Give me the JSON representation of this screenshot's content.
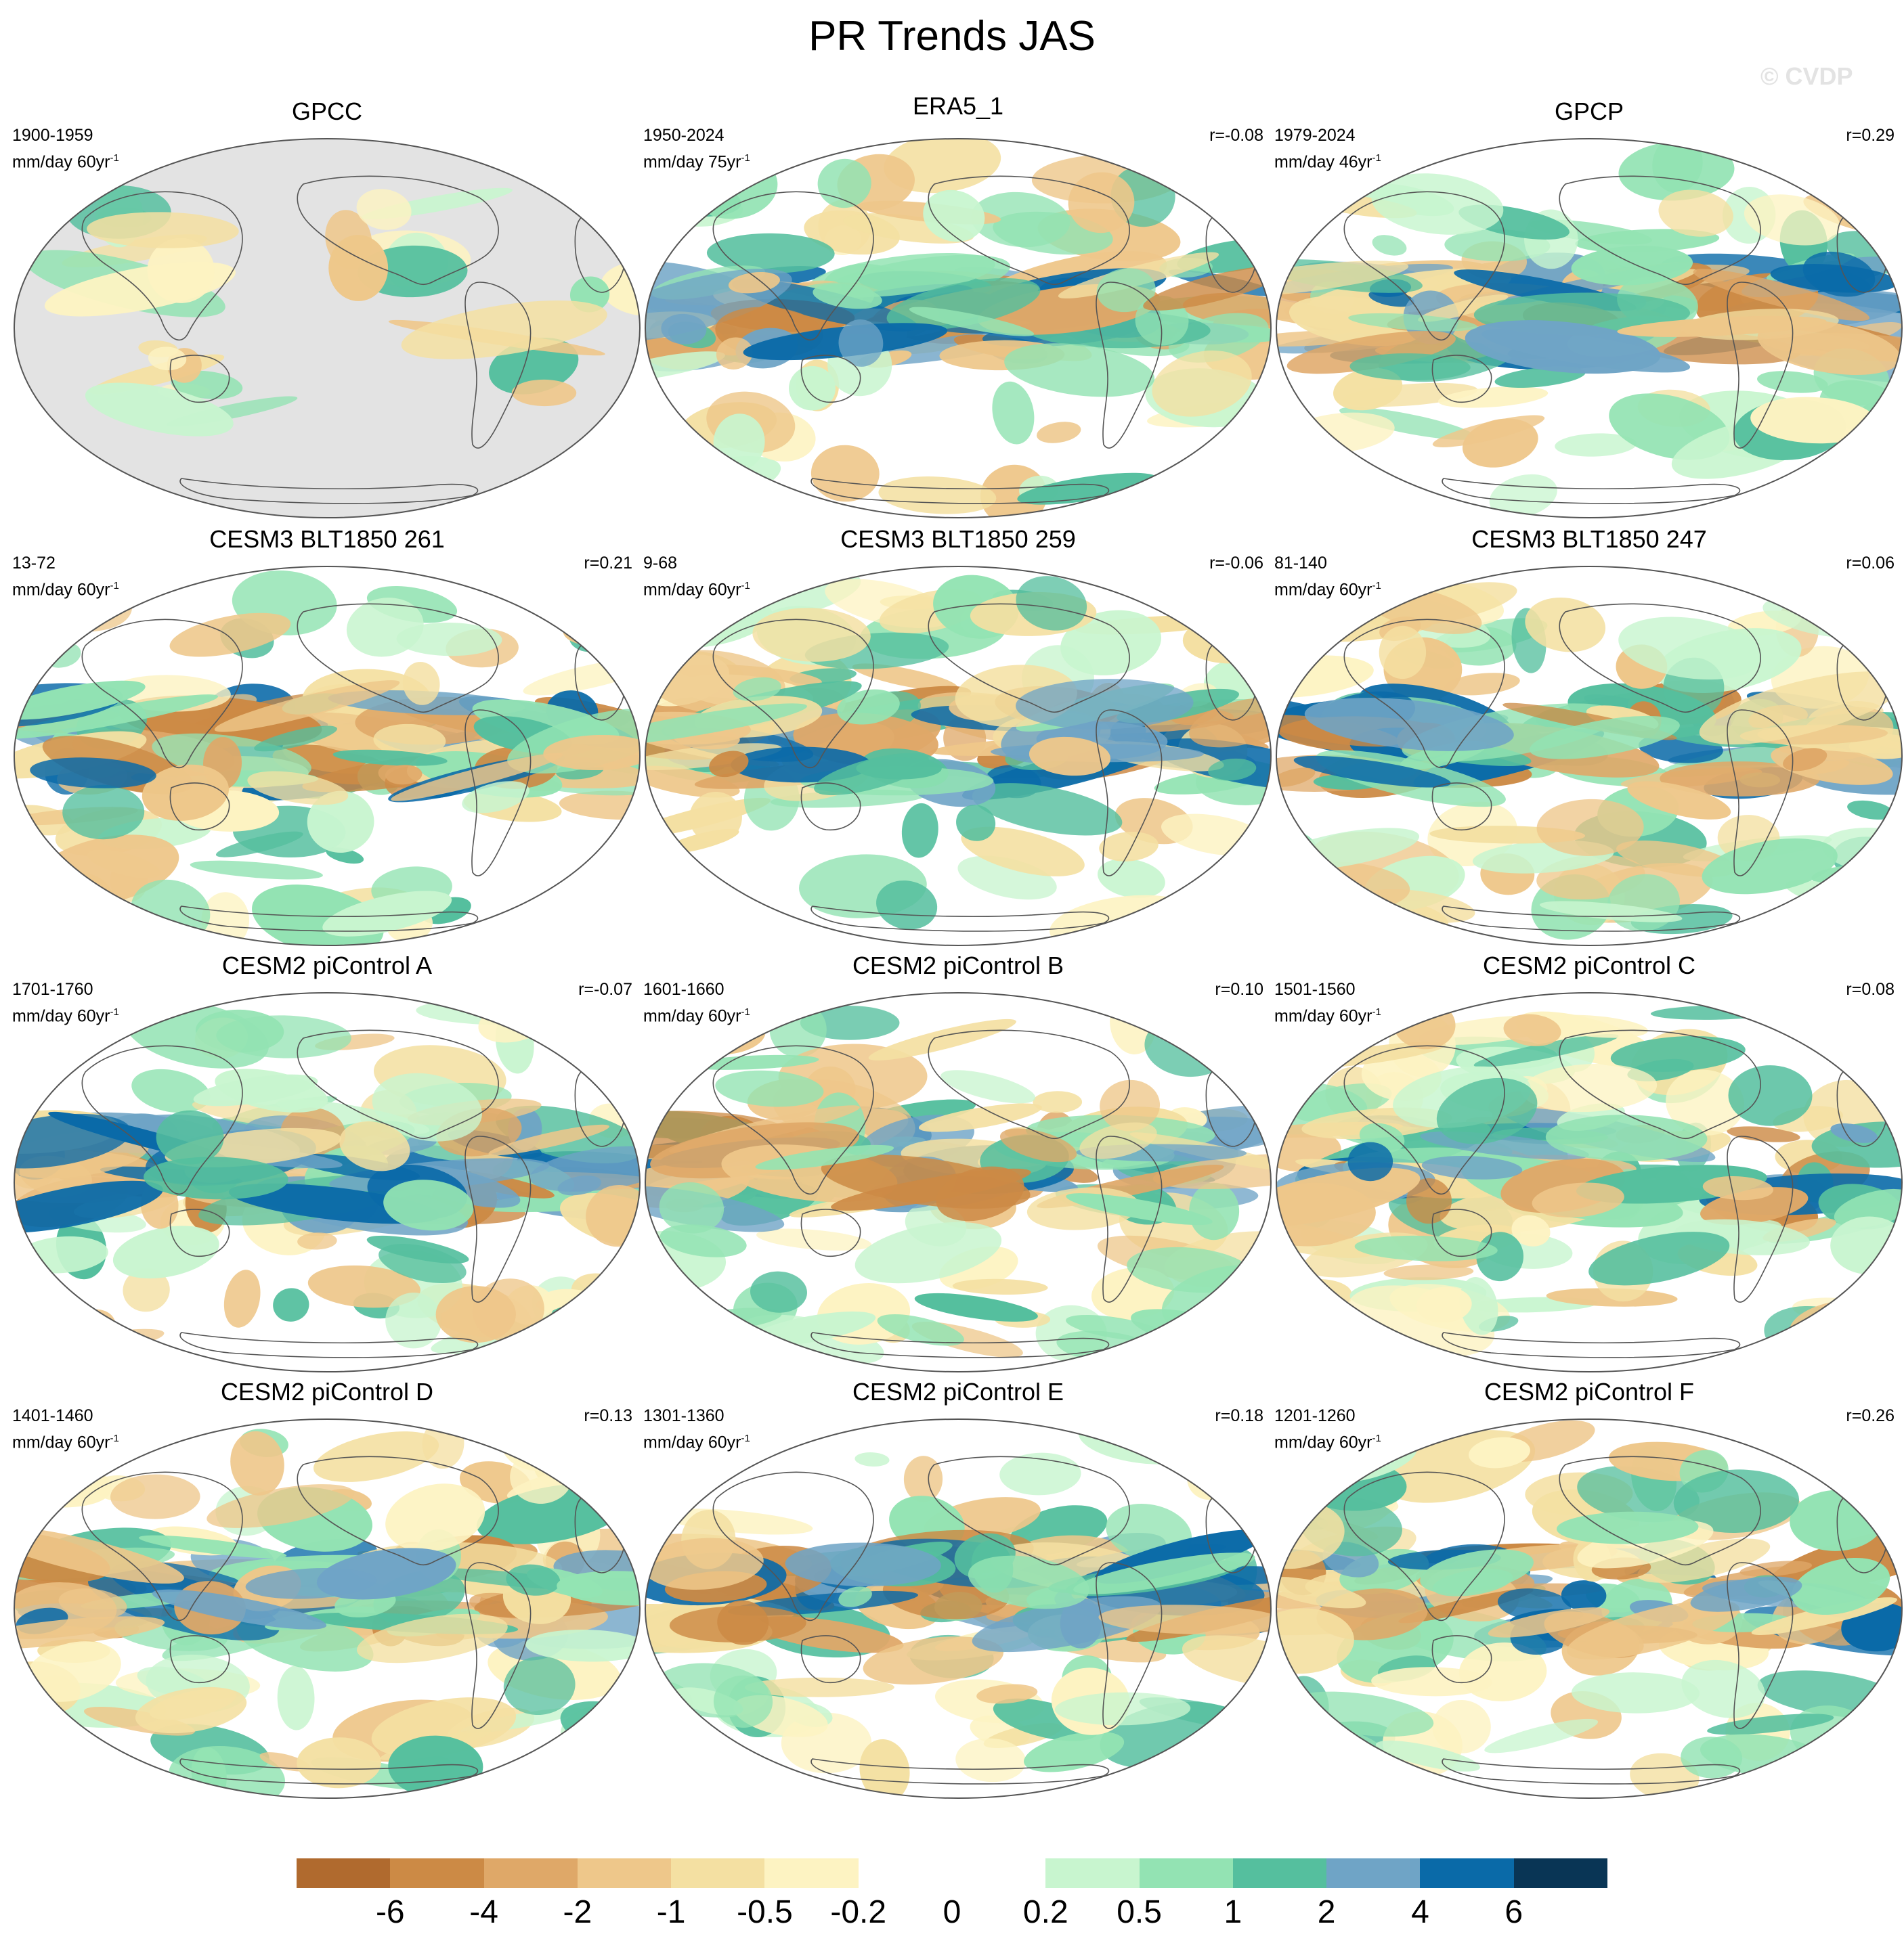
{
  "figure_title": "PR Trends JAS",
  "watermark": "© CVDP",
  "panels": [
    {
      "title": "GPCC",
      "period": "1900-1959",
      "units_prefix": "mm/day 60yr",
      "units_exp": "-1",
      "corr": "",
      "masked": true
    },
    {
      "title": "ERA5_1",
      "period": "1950-2024",
      "units_prefix": "mm/day 75yr",
      "units_exp": "-1",
      "corr": "r=-0.08",
      "masked": false
    },
    {
      "title": "GPCP",
      "period": "1979-2024",
      "units_prefix": "mm/day 46yr",
      "units_exp": "-1",
      "corr": "r=0.29",
      "masked": false
    },
    {
      "title": "CESM3 BLT1850 261",
      "period": "13-72",
      "units_prefix": "mm/day 60yr",
      "units_exp": "-1",
      "corr": "r=0.21",
      "masked": false
    },
    {
      "title": "CESM3 BLT1850 259",
      "period": "9-68",
      "units_prefix": "mm/day 60yr",
      "units_exp": "-1",
      "corr": "r=-0.06",
      "masked": false
    },
    {
      "title": "CESM3 BLT1850 247",
      "period": "81-140",
      "units_prefix": "mm/day 60yr",
      "units_exp": "-1",
      "corr": "r=0.06",
      "masked": false
    },
    {
      "title": "CESM2 piControl A",
      "period": "1701-1760",
      "units_prefix": "mm/day 60yr",
      "units_exp": "-1",
      "corr": "r=-0.07",
      "masked": false
    },
    {
      "title": "CESM2 piControl B",
      "period": "1601-1660",
      "units_prefix": "mm/day 60yr",
      "units_exp": "-1",
      "corr": "r=0.10",
      "masked": false
    },
    {
      "title": "CESM2 piControl C",
      "period": "1501-1560",
      "units_prefix": "mm/day 60yr",
      "units_exp": "-1",
      "corr": "r=0.08",
      "masked": false
    },
    {
      "title": "CESM2 piControl D",
      "period": "1401-1460",
      "units_prefix": "mm/day 60yr",
      "units_exp": "-1",
      "corr": "r=0.13",
      "masked": false
    },
    {
      "title": "CESM2 piControl E",
      "period": "1301-1360",
      "units_prefix": "mm/day 60yr",
      "units_exp": "-1",
      "corr": "r=0.18",
      "masked": false
    },
    {
      "title": "CESM2 piControl F",
      "period": "1201-1260",
      "units_prefix": "mm/day 60yr",
      "units_exp": "-1",
      "corr": "r=0.26",
      "masked": false
    }
  ],
  "colorbar": {
    "labels": [
      "-6",
      "-4",
      "-2",
      "-1",
      "-0.5",
      "-0.2",
      "0",
      "0.2",
      "0.5",
      "1",
      "2",
      "4",
      "6"
    ],
    "colors": [
      "#b06a2e",
      "#cc8a45",
      "#dfa868",
      "#eec78a",
      "#f4e0a2",
      "#fdf3c2",
      "#ffffff",
      "#ffffff",
      "#c8f5cf",
      "#93e3b3",
      "#55bf9e",
      "#6fa4c6",
      "#0a6aa8",
      "#093555"
    ]
  },
  "style": {
    "mask_color": "#e3e3e3",
    "outline_color": "#555555",
    "coast_color": "#555555"
  }
}
